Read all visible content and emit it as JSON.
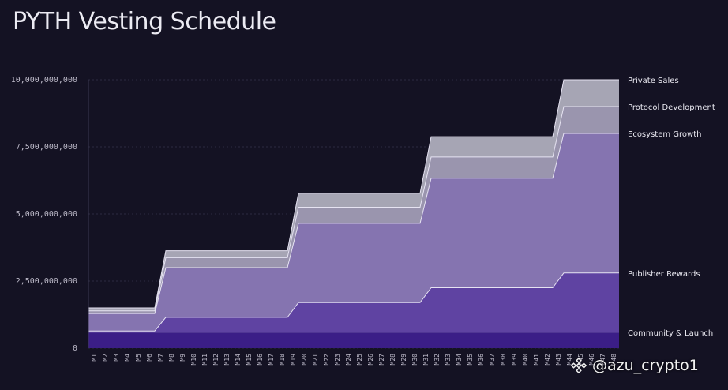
{
  "title": "PYTH Vesting Schedule",
  "watermark": "@azu_crypto1",
  "colors": {
    "background": "#141223",
    "community": "#3b1e87",
    "publisher": "#5f43a2",
    "ecosystem": "#8574b0",
    "protocol": "#9a95ae",
    "private": "#a6a5b4"
  },
  "chart_data": {
    "type": "area",
    "stacked": true,
    "x": [
      "M1",
      "M2",
      "M3",
      "M4",
      "M5",
      "M6",
      "M7",
      "M8",
      "M9",
      "M10",
      "M11",
      "M12",
      "M13",
      "M14",
      "M15",
      "M16",
      "M17",
      "M18",
      "M19",
      "M20",
      "M21",
      "M22",
      "M23",
      "M24",
      "M25",
      "M26",
      "M27",
      "M28",
      "M29",
      "M30",
      "M31",
      "M32",
      "M33",
      "M34",
      "M35",
      "M36",
      "M37",
      "M38",
      "M39",
      "M40",
      "M41",
      "M42",
      "M43",
      "M44",
      "M45",
      "M46",
      "M47",
      "M48"
    ],
    "ylim": [
      0,
      10000000000
    ],
    "yticks": [
      0,
      2500000000,
      5000000000,
      7500000000,
      10000000000
    ],
    "ytick_labels": [
      "0",
      "2,500,000,000",
      "5,000,000,000",
      "7,500,000,000",
      "10,000,000,000"
    ],
    "series": [
      {
        "name": "Community & Launch",
        "color": "#3b1e87",
        "steps": [
          600000000,
          600000000,
          600000000,
          600000000,
          600000000
        ],
        "step_starts": [
          0,
          6,
          18,
          30,
          42
        ]
      },
      {
        "name": "Publisher Rewards",
        "color": "#5f43a2",
        "steps": [
          640000000,
          1150000000,
          1700000000,
          2250000000,
          2800000000
        ],
        "step_starts": [
          0,
          6,
          18,
          30,
          42
        ]
      },
      {
        "name": "Ecosystem Growth",
        "color": "#8574b0",
        "steps": [
          1290000000,
          3000000000,
          4650000000,
          6330000000,
          8000000000
        ],
        "step_starts": [
          0,
          6,
          18,
          30,
          42
        ]
      },
      {
        "name": "Protocol Development",
        "color": "#9a95ae",
        "steps": [
          1390000000,
          3370000000,
          5250000000,
          7120000000,
          9000000000
        ],
        "step_starts": [
          0,
          6,
          18,
          30,
          42
        ]
      },
      {
        "name": "Private Sales",
        "color": "#a6a5b4",
        "steps": [
          1500000000,
          3630000000,
          5770000000,
          7880000000,
          10000000000
        ],
        "step_starts": [
          0,
          6,
          18,
          30,
          42
        ]
      }
    ],
    "legend_placement": "right, inline with series"
  }
}
